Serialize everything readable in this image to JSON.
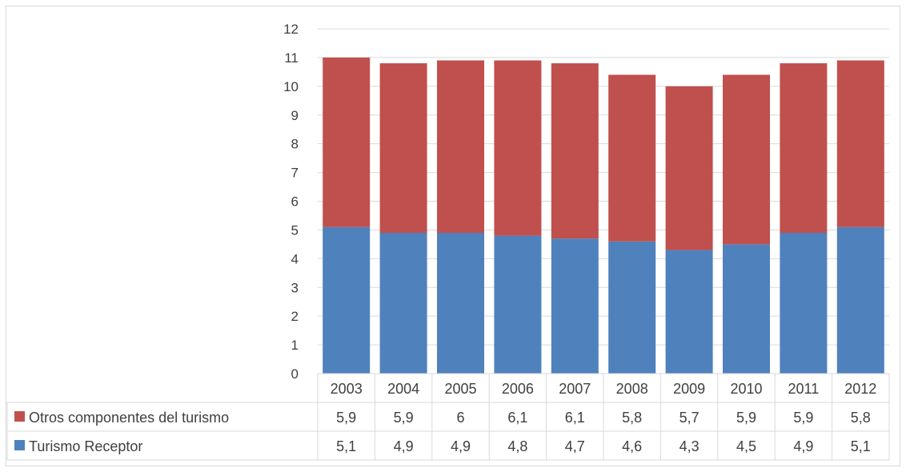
{
  "chart_data": {
    "type": "bar",
    "stacked": true,
    "title": "",
    "xlabel": "",
    "ylabel": "",
    "ylim": [
      0,
      12
    ],
    "yticks": [
      0,
      1,
      2,
      3,
      4,
      5,
      6,
      7,
      8,
      9,
      10,
      11,
      12
    ],
    "grid": true,
    "legend": "data-table",
    "categories": [
      "2003",
      "2004",
      "2005",
      "2006",
      "2007",
      "2008",
      "2009",
      "2010",
      "2011",
      "2012"
    ],
    "series": [
      {
        "name": "Turismo Receptor",
        "color": "#4f81bd",
        "values": [
          5.1,
          4.9,
          4.9,
          4.8,
          4.7,
          4.6,
          4.3,
          4.5,
          4.9,
          5.1
        ],
        "labels": [
          "5,1",
          "4,9",
          "4,9",
          "4,8",
          "4,7",
          "4,6",
          "4,3",
          "4,5",
          "4,9",
          "5,1"
        ]
      },
      {
        "name": "Otros componentes del turismo",
        "color": "#c0504d",
        "values": [
          5.9,
          5.9,
          6,
          6.1,
          6.1,
          5.8,
          5.7,
          5.9,
          5.9,
          5.8
        ],
        "labels": [
          "5,9",
          "5,9",
          "6",
          "6,1",
          "6,1",
          "5,8",
          "5,7",
          "5,9",
          "5,9",
          "5,8"
        ]
      }
    ]
  }
}
